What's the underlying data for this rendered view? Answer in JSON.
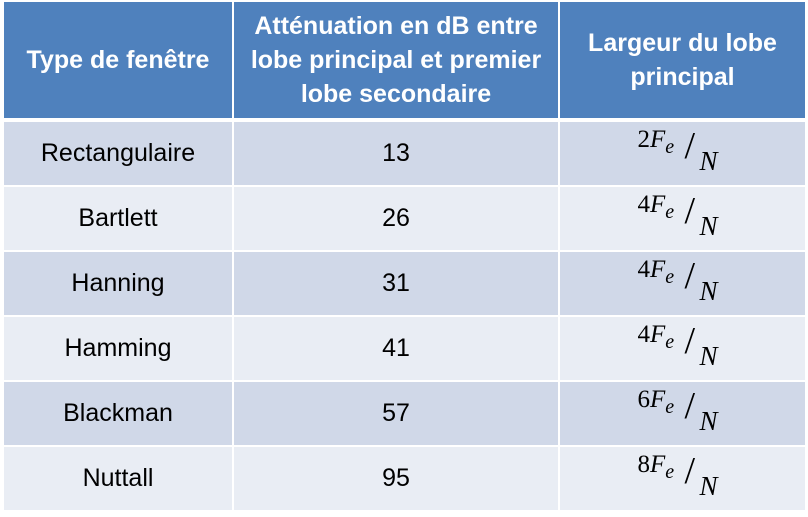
{
  "headers": {
    "window_type": "Type de fenêtre",
    "attenuation": "Atténuation en dB entre lobe principal et premier lobe secondaire",
    "main_lobe_width": "Largeur du lobe principal"
  },
  "rows": [
    {
      "window": "Rectangulaire",
      "attenuation_db": "13",
      "width_coef": "2",
      "width_var": "F",
      "width_sub": "e",
      "width_den": "N"
    },
    {
      "window": "Bartlett",
      "attenuation_db": "26",
      "width_coef": "4",
      "width_var": "F",
      "width_sub": "e",
      "width_den": "N"
    },
    {
      "window": "Hanning",
      "attenuation_db": "31",
      "width_coef": "4",
      "width_var": "F",
      "width_sub": "e",
      "width_den": "N"
    },
    {
      "window": "Hamming",
      "attenuation_db": "41",
      "width_coef": "4",
      "width_var": "F",
      "width_sub": "e",
      "width_den": "N"
    },
    {
      "window": "Blackman",
      "attenuation_db": "57",
      "width_coef": "6",
      "width_var": "F",
      "width_sub": "e",
      "width_den": "N"
    },
    {
      "window": "Nuttall",
      "attenuation_db": "95",
      "width_coef": "8",
      "width_var": "F",
      "width_sub": "e",
      "width_den": "N"
    }
  ],
  "colors": {
    "header_bg": "#4f81bd",
    "row_odd_bg": "#d0d8e8",
    "row_even_bg": "#e9edf4"
  }
}
